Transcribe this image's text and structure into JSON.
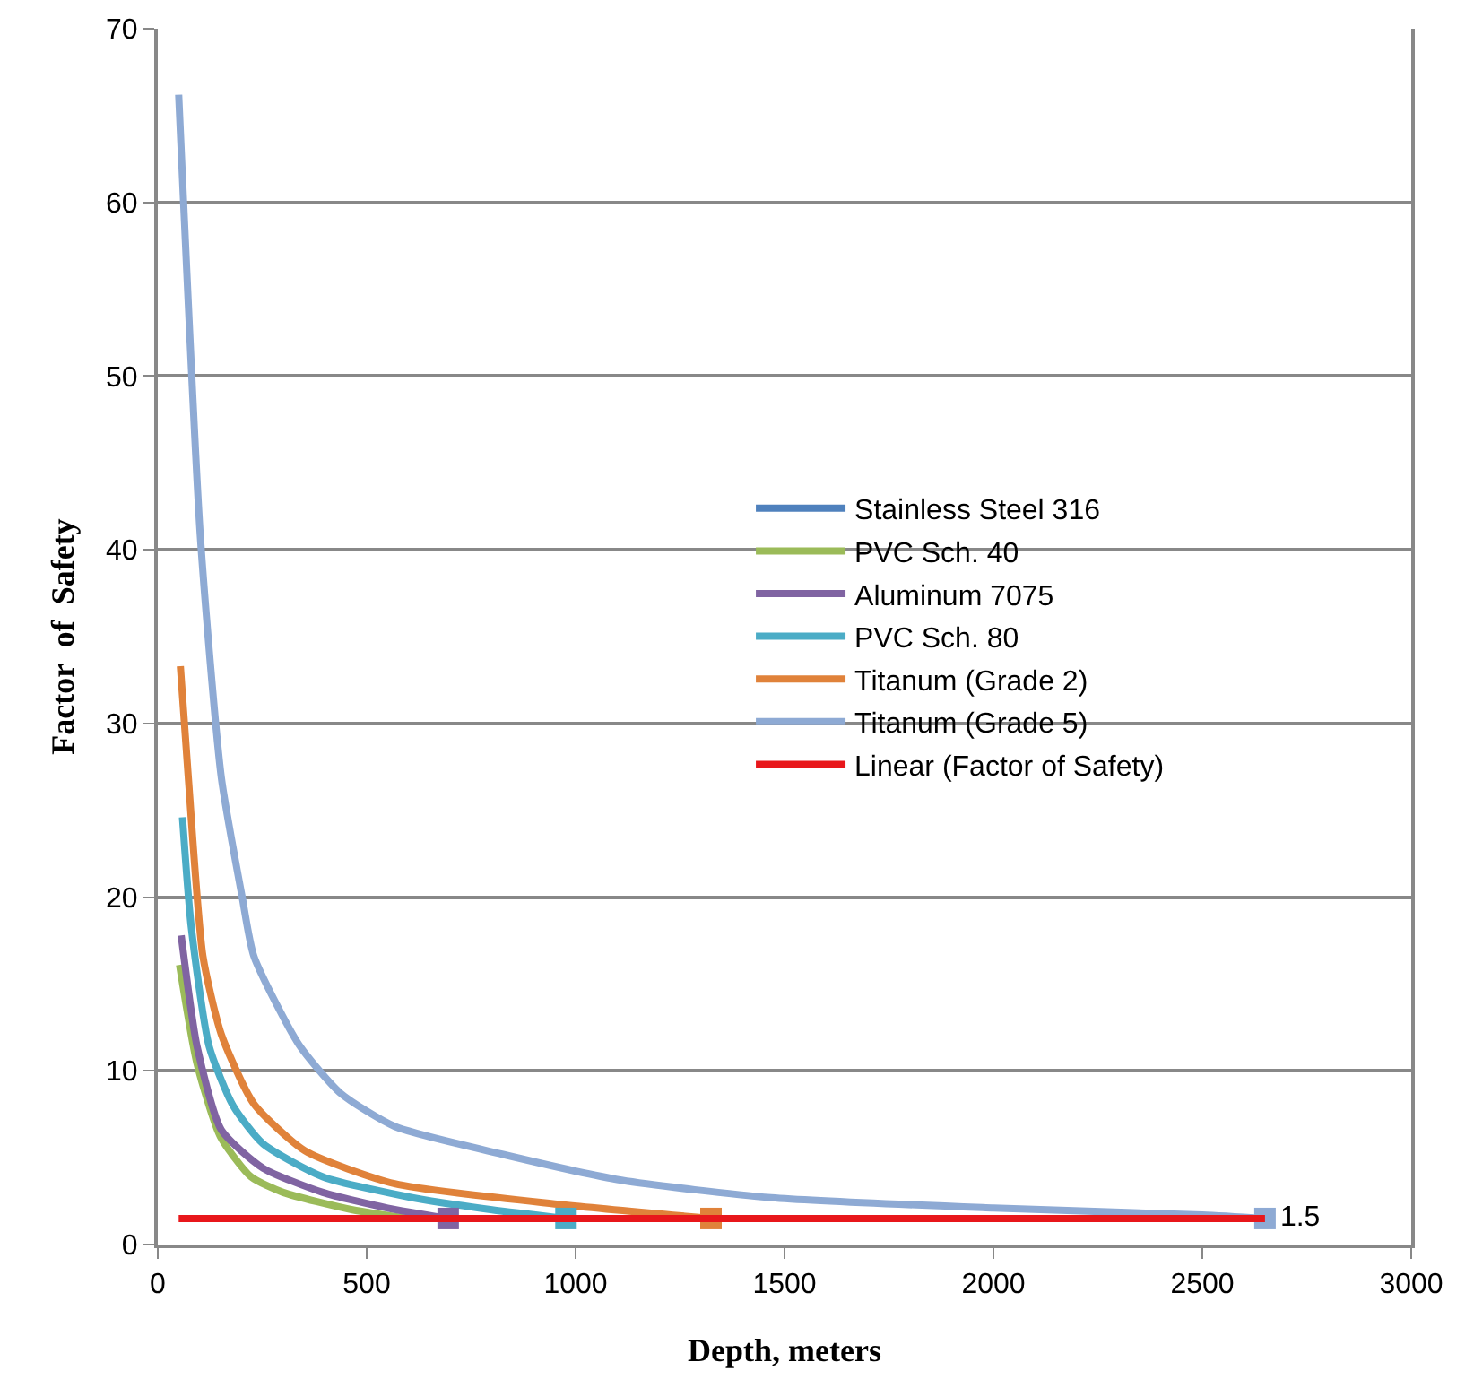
{
  "chart_data": {
    "type": "line",
    "xlabel": "Depth, meters",
    "ylabel": "Factor  of  Safety",
    "xlim": [
      0,
      3000
    ],
    "xticks": [
      0,
      500,
      1000,
      1500,
      2000,
      2500,
      3000
    ],
    "ylim": [
      0,
      70
    ],
    "yticks": [
      0,
      10,
      20,
      30,
      40,
      50,
      60,
      70
    ],
    "grid": "y",
    "legend": "right",
    "line_style": "solid",
    "marker": "none",
    "series": [
      {
        "name": "Stainless Steel 316",
        "color": "#4f81bd"
      },
      {
        "name": "PVC Sch. 40",
        "color": "#9bbb59",
        "x": [
          52,
          94,
          150,
          223,
          300,
          466,
          600
        ],
        "values": [
          16.1,
          10.4,
          6.2,
          3.9,
          3.0,
          2.0,
          1.5
        ]
      },
      {
        "name": "Aluminum 7075",
        "color": "#8064a2",
        "x": [
          56,
          94,
          152,
          252,
          395,
          550,
          695
        ],
        "values": [
          17.8,
          11.4,
          6.6,
          4.4,
          3.0,
          2.1,
          1.5
        ]
      },
      {
        "name": "PVC Sch. 80",
        "color": "#4bacc6",
        "x": [
          59,
          80,
          123,
          180,
          252,
          395,
          609,
          800,
          977
        ],
        "values": [
          24.6,
          18.3,
          11.4,
          8.0,
          5.8,
          3.9,
          2.7,
          2.0,
          1.5
        ]
      },
      {
        "name": "Titanum (Grade 2)",
        "color": "#e0823a",
        "x": [
          54,
          73,
          108,
          152,
          230,
          352,
          567,
          967,
          1324
        ],
        "values": [
          33.3,
          26.9,
          16.6,
          12.1,
          8.1,
          5.4,
          3.5,
          2.3,
          1.5
        ]
      },
      {
        "name": "Titanum (Grade 5)",
        "color": "#8eaad4",
        "x": [
          50,
          102,
          152,
          202,
          230,
          338,
          438,
          567,
          824,
          1110,
          1468,
          2000,
          2500,
          2650
        ],
        "values": [
          66.2,
          40.7,
          26.9,
          20.0,
          16.6,
          11.5,
          8.7,
          6.8,
          5.2,
          3.7,
          2.7,
          2.1,
          1.7,
          1.5
        ]
      },
      {
        "type": "scatter",
        "marker": "square",
        "colors": [
          "#8064a2",
          "#4bacc6",
          "#e0823a",
          "#8eaad4"
        ],
        "x": [
          695,
          977,
          1324,
          2650
        ],
        "values": [
          1.5,
          1.5,
          1.5,
          1.5
        ],
        "value_labels": [
          null,
          null,
          null,
          "1.5"
        ]
      },
      {
        "name": "Linear (Factor of Safety)",
        "color": "#e8171b",
        "x": [
          50,
          2650
        ],
        "values": [
          1.5,
          1.5
        ]
      }
    ]
  }
}
